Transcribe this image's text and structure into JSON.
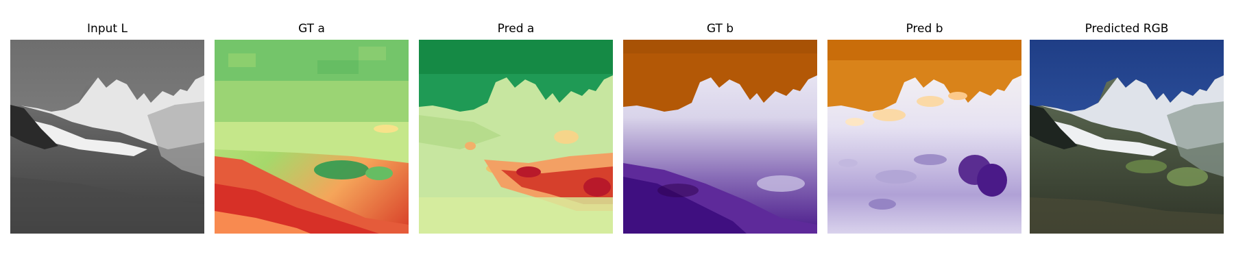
{
  "panels": [
    {
      "title": "Input L",
      "image": "grayscale-mountain-luminance"
    },
    {
      "title": "GT a",
      "image": "green-red-a-channel-ground-truth"
    },
    {
      "title": "Pred a",
      "image": "green-red-a-channel-prediction"
    },
    {
      "title": "GT b",
      "image": "orange-purple-b-channel-ground-truth"
    },
    {
      "title": "Pred b",
      "image": "orange-purple-b-channel-prediction"
    },
    {
      "title": "Predicted RGB",
      "image": "colorized-mountain-photo"
    }
  ]
}
